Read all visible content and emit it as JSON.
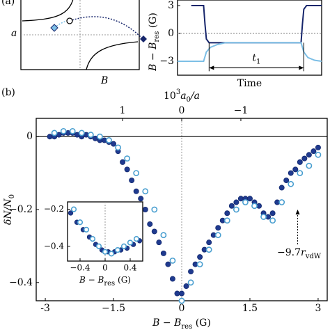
{
  "schematic": {
    "panel": "(a)",
    "y_label": "a",
    "x_label": "B"
  },
  "chart_data": [
    {
      "type": "line",
      "x_label": "Time",
      "y_label": [
        "B",
        " − ",
        "B",
        "res",
        " (G)"
      ],
      "annotation": [
        "t",
        "1"
      ],
      "xlim": [
        -1,
        9.5
      ],
      "ylim": [
        -4.5,
        3.6
      ],
      "yticks": [
        3,
        0,
        {
          "value": -3,
          "label": "−3"
        }
      ],
      "zero_line": true,
      "series": [
        {
          "color": "#16256b",
          "x": [
            0,
            0.9,
            1.0,
            1.1,
            1.3,
            8.0,
            8.1,
            8.2,
            8.4,
            9.5
          ],
          "values": [
            3,
            3,
            1,
            -0.6,
            -1,
            -1,
            1,
            2.6,
            3,
            3
          ]
        },
        {
          "color": "#7dbfe6",
          "x": [
            -1,
            0.9,
            1.1,
            1.4,
            1.9,
            2.5,
            8.0,
            8.2,
            8.5,
            9.0,
            9.5
          ],
          "values": [
            -3,
            -3,
            -2,
            -1.5,
            -1.2,
            -1,
            -1,
            -2,
            -2.6,
            -2.9,
            -3
          ]
        }
      ]
    },
    {
      "type": "scatter",
      "panel": "(b)",
      "x_label": [
        "B",
        " − ",
        "B",
        "res",
        " (G)"
      ],
      "y_label": [
        "δN/N",
        "0"
      ],
      "x2_label": [
        "10",
        "3",
        "a",
        "0",
        "/a"
      ],
      "annotation": [
        "−9.7",
        "r",
        "vdW"
      ],
      "annotation_x": 2.55,
      "annotation_y": -0.2,
      "xlim": [
        -3.2,
        3.2
      ],
      "ylim": [
        -0.45,
        0.05
      ],
      "x2lim": [
        2.46,
        -2.46
      ],
      "xticks": [
        -3,
        {
          "value": -1.5,
          "label": "−1.5"
        },
        0,
        1.5,
        3
      ],
      "yticks": [
        0,
        {
          "value": -0.2,
          "label": "−0.2"
        },
        {
          "value": -0.4,
          "label": "−0.4"
        }
      ],
      "x2ticks": [
        1,
        0,
        {
          "value": -1,
          "label": "−1"
        }
      ],
      "zero_line": true,
      "center_line": true,
      "series": [
        {
          "color": "#1f3a8f",
          "filled": true,
          "x": [
            -2.9,
            -2.8,
            -2.7,
            -2.6,
            -2.5,
            -2.4,
            -2.3,
            -2.2,
            -2.1,
            -2.0,
            -1.9,
            -1.8,
            -1.7,
            -1.6,
            -1.5,
            -1.4,
            -1.3,
            -1.2,
            -1.1,
            -1.0,
            -0.9,
            -0.8,
            -0.7,
            -0.6,
            -0.5,
            -0.4,
            -0.3,
            -0.2,
            -0.1,
            0,
            0.1,
            0.2,
            0.3,
            0.4,
            0.5,
            0.6,
            0.7,
            0.8,
            0.9,
            1.0,
            1.1,
            1.2,
            1.3,
            1.4,
            1.5,
            1.6,
            1.7,
            1.8,
            1.9,
            2.0,
            2.1,
            2.2,
            2.3,
            2.4,
            2.5,
            2.6,
            2.7,
            2.8,
            2.9,
            3.0
          ],
          "values": [
            0.0,
            0.0,
            0.005,
            0.01,
            0.01,
            0.01,
            0.005,
            0.0,
            0.005,
            0.0,
            -0.005,
            -0.01,
            -0.01,
            -0.015,
            -0.02,
            -0.04,
            -0.07,
            -0.09,
            -0.12,
            -0.15,
            -0.17,
            -0.2,
            -0.24,
            -0.26,
            -0.29,
            -0.32,
            -0.35,
            -0.39,
            -0.43,
            -0.43,
            -0.41,
            -0.37,
            -0.35,
            -0.33,
            -0.31,
            -0.29,
            -0.27,
            -0.25,
            -0.23,
            -0.21,
            -0.19,
            -0.18,
            -0.17,
            -0.17,
            -0.17,
            -0.18,
            -0.19,
            -0.21,
            -0.22,
            -0.21,
            -0.18,
            -0.14,
            -0.12,
            -0.1,
            -0.09,
            -0.07,
            -0.06,
            -0.05,
            -0.04,
            -0.03
          ]
        },
        {
          "color": "#4a9fd0",
          "filled": false,
          "x": [
            -2.8,
            -2.6,
            -2.4,
            -2.2,
            -2.0,
            -1.8,
            -1.6,
            -1.4,
            -1.2,
            -1.0,
            -0.8,
            -0.6,
            -0.4,
            -0.2,
            0,
            0.2,
            0.4,
            0.6,
            0.8,
            1.0,
            1.2,
            1.4,
            1.6,
            1.8,
            2.0,
            2.2,
            2.4,
            2.6,
            2.8,
            3.0
          ],
          "values": [
            0.01,
            0.015,
            0.015,
            0.01,
            0.005,
            0.0,
            -0.01,
            -0.03,
            -0.06,
            -0.1,
            -0.15,
            -0.2,
            -0.27,
            -0.34,
            -0.45,
            -0.4,
            -0.35,
            -0.31,
            -0.27,
            -0.23,
            -0.2,
            -0.18,
            -0.19,
            -0.22,
            -0.23,
            -0.18,
            -0.13,
            -0.1,
            -0.08,
            -0.05
          ]
        }
      ]
    },
    {
      "type": "scatter",
      "x_label": [
        "B",
        " − ",
        "B",
        "res",
        " (G)"
      ],
      "inset": true,
      "xlim": [
        -0.6,
        0.6
      ],
      "ylim": [
        -0.48,
        -0.16
      ],
      "xticks": [
        {
          "value": -0.4,
          "label": "−0.4"
        },
        0,
        0.4
      ],
      "yticks": [
        {
          "value": -0.2,
          "label": "−0.2"
        },
        {
          "value": -0.4,
          "label": "−0.4"
        }
      ],
      "center_line": true,
      "series": [
        {
          "color": "#1f3a8f",
          "filled": true,
          "x": [
            -0.55,
            -0.45,
            -0.35,
            -0.25,
            -0.15,
            -0.05,
            0.05,
            0.15,
            0.25,
            0.35,
            0.45,
            0.55
          ],
          "values": [
            -0.22,
            -0.27,
            -0.31,
            -0.35,
            -0.39,
            -0.42,
            -0.43,
            -0.43,
            -0.42,
            -0.41,
            -0.39,
            -0.37
          ]
        },
        {
          "color": "#4a9fd0",
          "filled": false,
          "x": [
            -0.5,
            -0.4,
            -0.3,
            -0.2,
            -0.1,
            0,
            0.1,
            0.2,
            0.3,
            0.4,
            0.5
          ],
          "values": [
            -0.2,
            -0.27,
            -0.31,
            -0.36,
            -0.4,
            -0.43,
            -0.44,
            -0.42,
            -0.4,
            -0.38,
            -0.36
          ]
        }
      ]
    }
  ]
}
